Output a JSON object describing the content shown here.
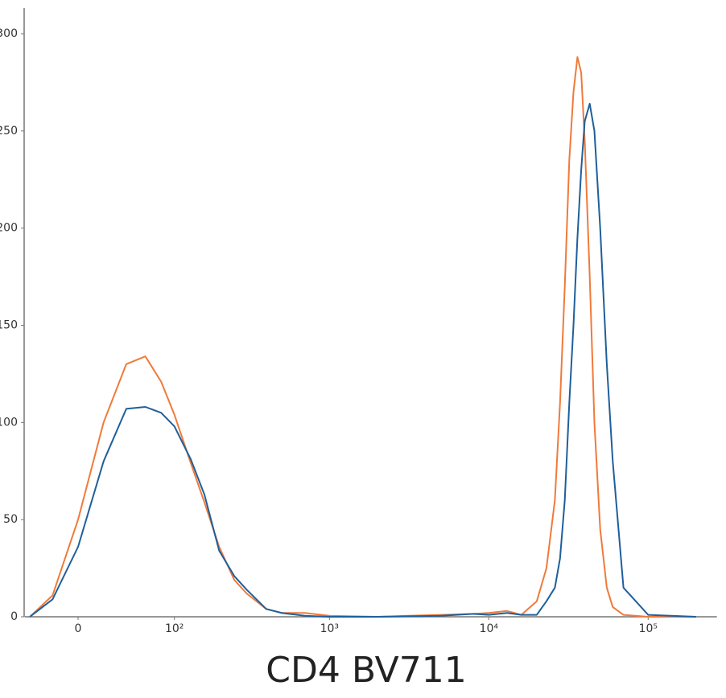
{
  "chart_data": {
    "type": "line",
    "x_label": "CD4 BV711",
    "xscale": "asinh",
    "xlim": [
      -45,
      270000
    ],
    "xticks": [
      0,
      {
        "value": 100,
        "label": "10²"
      },
      {
        "value": 1000,
        "label": "10³"
      },
      {
        "value": 10000,
        "label": "10⁴"
      },
      {
        "value": 100000,
        "label": "10⁵"
      }
    ],
    "ylim": [
      0,
      300
    ],
    "yticks": [
      0,
      50,
      100,
      150,
      200,
      250,
      300
    ],
    "x": [
      -40,
      -20,
      0,
      20,
      40,
      60,
      80,
      100,
      130,
      160,
      200,
      250,
      300,
      400,
      500,
      700,
      1000,
      2000,
      5000,
      8000,
      10000,
      13000,
      16000,
      20000,
      23000,
      26000,
      28000,
      30000,
      32000,
      34000,
      36000,
      38000,
      40000,
      43000,
      46000,
      50000,
      55000,
      60000,
      70000,
      100000,
      200000
    ],
    "series": [
      {
        "color": "#f07a3a",
        "values": [
          0,
          11,
          50,
          100,
          130,
          134,
          121,
          104,
          79,
          59,
          36,
          19,
          12,
          4,
          2,
          2,
          0.5,
          0,
          1,
          1.5,
          2,
          3,
          1,
          8,
          25,
          60,
          110,
          170,
          235,
          270,
          288,
          280,
          245,
          175,
          100,
          45,
          15,
          5,
          1,
          0,
          0
        ]
      },
      {
        "color": "#1f5f9a",
        "values": [
          0,
          9,
          36,
          80,
          107,
          108,
          105,
          98,
          81,
          63,
          34,
          21,
          14,
          4,
          2,
          0.5,
          0,
          0,
          0.5,
          1.5,
          1,
          2,
          1,
          1,
          8,
          15,
          30,
          60,
          110,
          150,
          195,
          230,
          255,
          264,
          250,
          200,
          130,
          80,
          15,
          1,
          0
        ]
      }
    ]
  }
}
